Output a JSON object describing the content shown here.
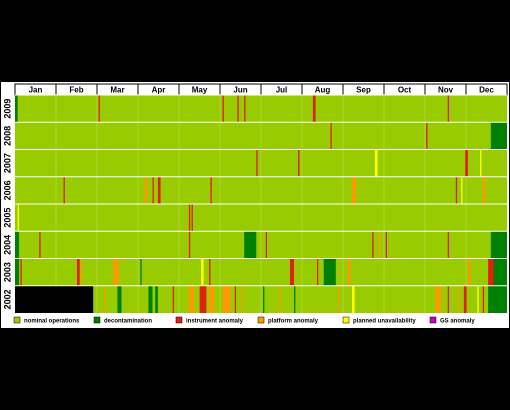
{
  "chart_data": {
    "type": "timeline",
    "categories": [
      "Jan",
      "Feb",
      "Mar",
      "Apr",
      "May",
      "Jun",
      "Jul",
      "Aug",
      "Sep",
      "Oct",
      "Nov",
      "Dec"
    ],
    "xlim": [
      0,
      365
    ],
    "statuses": [
      {
        "name": "nominal operations",
        "color": "#99cc00"
      },
      {
        "name": "decontamination",
        "color": "#008000"
      },
      {
        "name": "instrument anomaly",
        "color": "#e02010"
      },
      {
        "name": "platform anomaly",
        "color": "#ff9900"
      },
      {
        "name": "planned unavailability",
        "color": "#ffff00"
      },
      {
        "name": "GS anomaly",
        "color": "#cc00cc"
      }
    ],
    "rows": [
      {
        "label": "2009",
        "segments": [
          [
            0,
            2,
            1
          ],
          [
            62,
            63,
            2
          ],
          [
            154,
            155,
            2
          ],
          [
            165,
            166,
            2
          ],
          [
            170,
            171,
            2
          ],
          [
            221,
            223,
            2
          ],
          [
            321,
            322,
            2
          ]
        ]
      },
      {
        "label": "2008",
        "segments": [
          [
            234,
            235,
            2
          ],
          [
            305,
            306,
            2
          ],
          [
            353,
            365,
            1
          ]
        ]
      },
      {
        "label": "2007",
        "segments": [
          [
            179,
            180,
            2
          ],
          [
            210,
            211,
            2
          ],
          [
            267,
            269,
            4
          ],
          [
            334,
            336,
            2
          ],
          [
            345,
            346,
            4
          ]
        ]
      },
      {
        "label": "2006",
        "segments": [
          [
            36,
            37,
            2
          ],
          [
            96,
            98,
            3
          ],
          [
            102,
            103,
            2
          ],
          [
            106,
            108,
            2
          ],
          [
            145,
            146,
            2
          ],
          [
            250,
            253,
            3
          ],
          [
            327,
            328,
            2
          ],
          [
            331,
            332,
            4
          ],
          [
            347,
            349,
            3
          ]
        ]
      },
      {
        "label": "2005",
        "segments": [
          [
            2,
            3,
            4
          ],
          [
            129,
            130,
            2
          ],
          [
            131,
            132,
            2
          ]
        ]
      },
      {
        "label": "2004",
        "segments": [
          [
            0,
            3,
            1
          ],
          [
            18,
            19,
            2
          ],
          [
            129,
            130,
            2
          ],
          [
            170,
            179,
            1
          ],
          [
            186,
            187,
            2
          ],
          [
            265,
            266,
            2
          ],
          [
            270,
            271,
            3
          ],
          [
            275,
            276,
            2
          ],
          [
            321,
            322,
            2
          ],
          [
            353,
            365,
            1
          ]
        ]
      },
      {
        "label": "2003",
        "segments": [
          [
            0,
            3,
            1
          ],
          [
            4,
            5,
            2
          ],
          [
            46,
            48,
            2
          ],
          [
            49,
            50,
            3
          ],
          [
            73,
            77,
            3
          ],
          [
            93,
            94,
            1
          ],
          [
            138,
            140,
            4
          ],
          [
            144,
            145,
            2
          ],
          [
            204,
            207,
            2
          ],
          [
            224,
            225,
            2
          ],
          [
            229,
            238,
            1
          ],
          [
            247,
            249,
            3
          ],
          [
            336,
            338,
            3
          ],
          [
            351,
            355,
            2
          ],
          [
            355,
            365,
            1
          ]
        ]
      },
      {
        "label": "2002",
        "from": 58,
        "segments": [
          [
            66,
            67,
            3
          ],
          [
            76,
            79,
            1
          ],
          [
            99,
            102,
            1
          ],
          [
            104,
            106,
            1
          ],
          [
            117,
            118,
            2
          ],
          [
            129,
            133,
            3
          ],
          [
            137,
            142,
            2
          ],
          [
            144,
            148,
            3
          ],
          [
            154,
            160,
            3
          ],
          [
            163,
            164,
            2
          ],
          [
            168,
            169,
            3
          ],
          [
            184,
            185,
            1
          ],
          [
            196,
            197,
            3
          ],
          [
            207,
            208,
            1
          ],
          [
            240,
            241,
            3
          ],
          [
            250,
            252,
            4
          ],
          [
            312,
            316,
            3
          ],
          [
            321,
            322,
            2
          ],
          [
            328,
            329,
            3
          ],
          [
            333,
            335,
            2
          ],
          [
            343,
            344,
            4
          ],
          [
            347,
            348,
            2
          ],
          [
            351,
            365,
            1
          ]
        ]
      }
    ]
  }
}
